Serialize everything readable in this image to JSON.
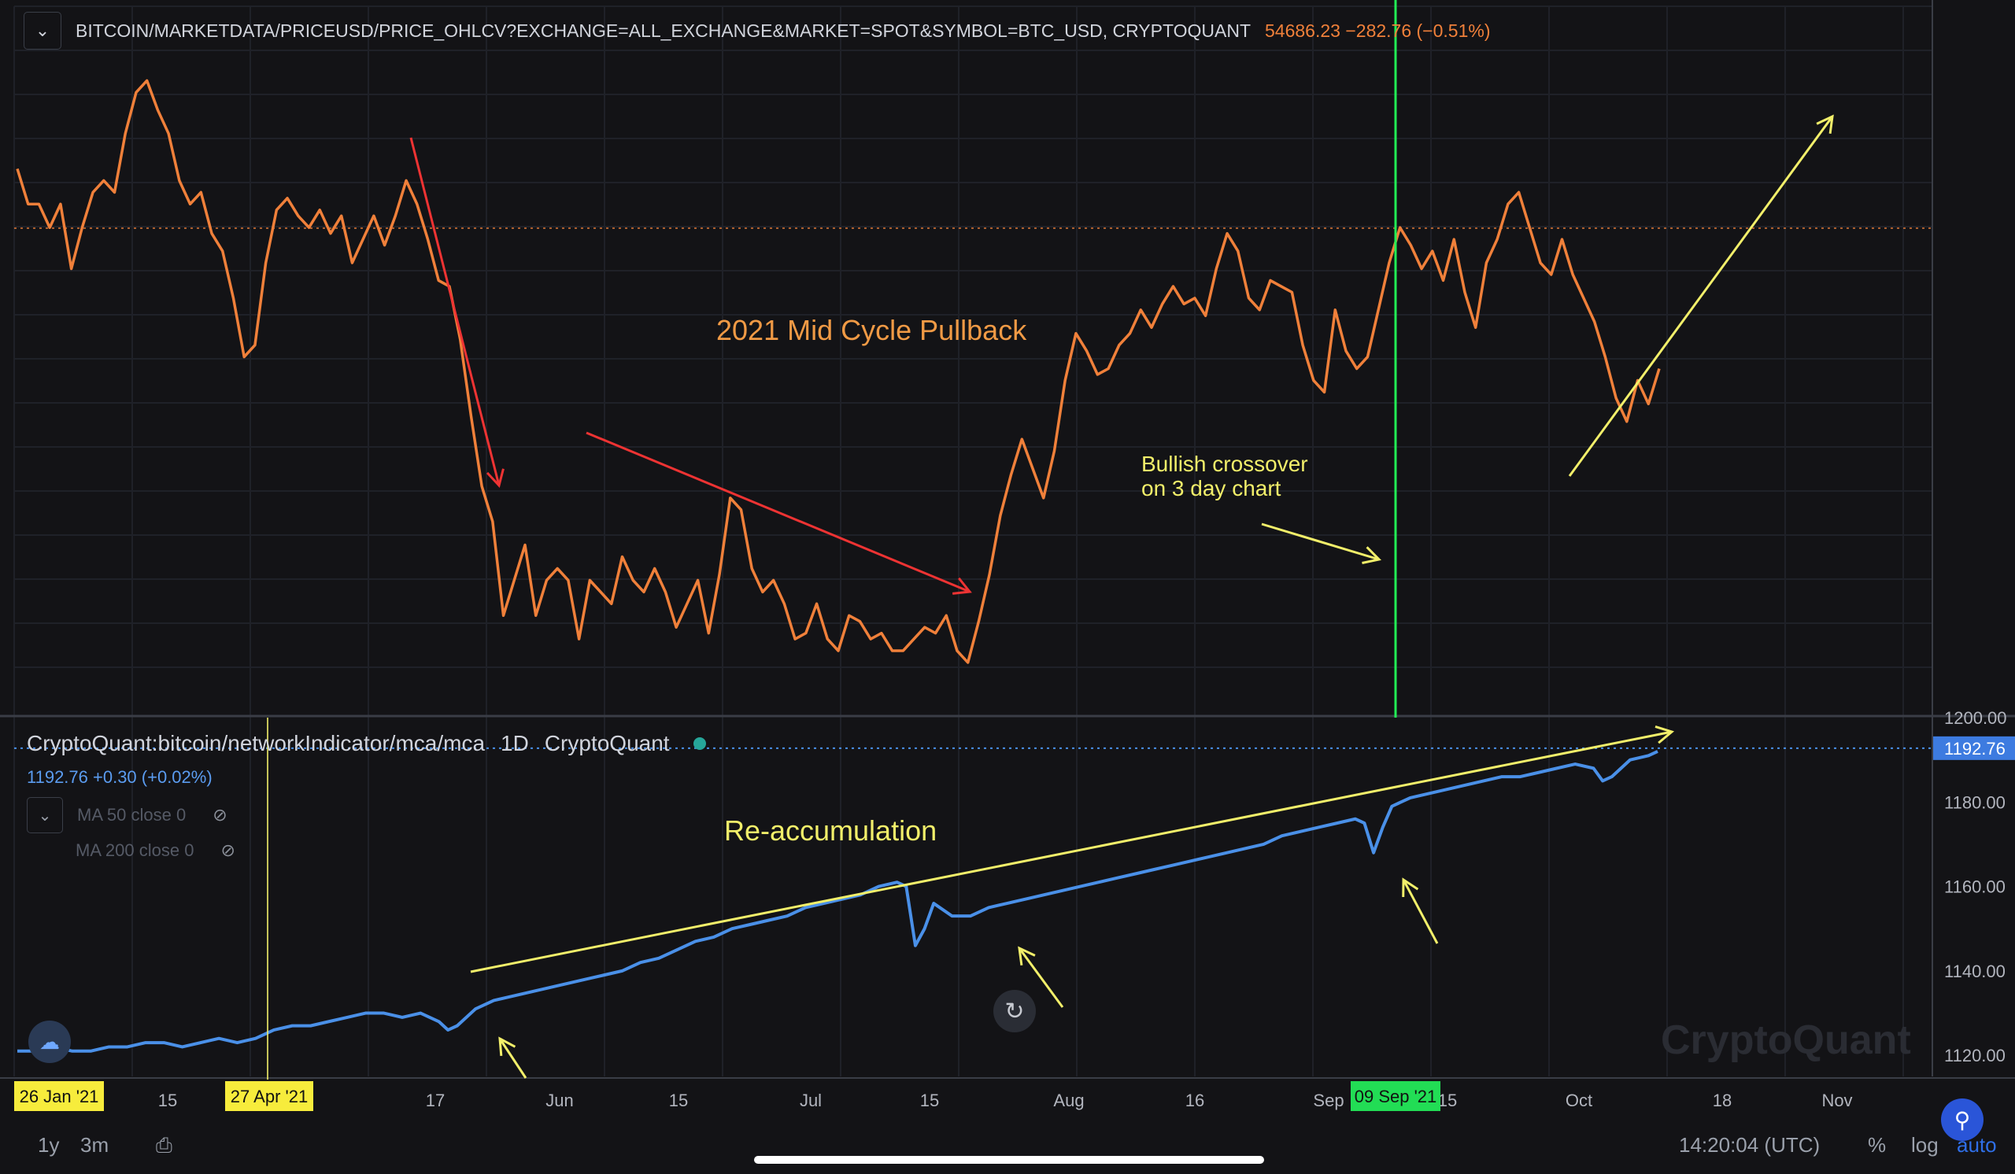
{
  "header": {
    "symbol": "BITCOIN/MARKETDATA/PRICEUSD/PRICE_OHLCV?EXCHANGE=ALL_EXCHANGE&MARKET=SPOT&SYMBOL=BTC_USD, CRYPTOQUANT",
    "price": "54686.23",
    "change": "−282.76 (−0.51%)",
    "collapse_icon": "chevron-down-icon"
  },
  "indicator": {
    "name": "CryptoQuant:bitcoin/networkIndicator/mca/mca",
    "interval": "1D",
    "source": "CryptoQuant",
    "value": "1192.76 +0.30 (+0.02%)",
    "ma50": "MA 50 close 0",
    "ma200": "MA 200 close 0"
  },
  "annotations": {
    "pullback": "2021 Mid Cycle Pullback",
    "crossover_line1": "Bullish crossover",
    "crossover_line2": "on 3 day chart",
    "reaccumulation": "Re-accumulation"
  },
  "date_badges": {
    "start": "26 Jan '21",
    "cursor": "27 Apr '21",
    "cross": "09 Sep '21"
  },
  "toolbar": {
    "range_1y": "1y",
    "range_3m": "3m",
    "time": "14:20:04 (UTC)",
    "pct": "%",
    "log": "log",
    "auto": "auto"
  },
  "watermark": "CryptoQuant",
  "colors": {
    "price": "#f0803a",
    "mca": "#4a90e8",
    "annotation": "#f2ef6a",
    "trend_down": "#ee3333",
    "crossover_line": "#22ee55",
    "background": "#131316"
  },
  "chart_data": [
    {
      "type": "line",
      "series": [
        {
          "name": "BITCOIN/MARKETDATA/PRICEUSD/PRICE_OHLCV",
          "values": [
            [
              0,
              0.16
            ],
            [
              3,
              0.22
            ],
            [
              6,
              0.22
            ],
            [
              9,
              0.26
            ],
            [
              12,
              0.22
            ],
            [
              15,
              0.33
            ],
            [
              18,
              0.26
            ],
            [
              21,
              0.2
            ],
            [
              24,
              0.18
            ],
            [
              27,
              0.2
            ],
            [
              30,
              0.1
            ],
            [
              33,
              0.03
            ],
            [
              36,
              0.01
            ],
            [
              39,
              0.06
            ],
            [
              42,
              0.1
            ],
            [
              45,
              0.18
            ],
            [
              48,
              0.22
            ],
            [
              51,
              0.2
            ],
            [
              54,
              0.27
            ],
            [
              57,
              0.3
            ],
            [
              60,
              0.38
            ],
            [
              63,
              0.48
            ],
            [
              66,
              0.46
            ],
            [
              69,
              0.32
            ],
            [
              72,
              0.23
            ],
            [
              75,
              0.21
            ],
            [
              78,
              0.24
            ],
            [
              81,
              0.26
            ],
            [
              84,
              0.23
            ],
            [
              87,
              0.27
            ],
            [
              90,
              0.24
            ],
            [
              93,
              0.32
            ],
            [
              96,
              0.28
            ],
            [
              99,
              0.24
            ],
            [
              102,
              0.29
            ],
            [
              105,
              0.24
            ],
            [
              108,
              0.18
            ],
            [
              111,
              0.22
            ],
            [
              114,
              0.28
            ],
            [
              117,
              0.35
            ],
            [
              120,
              0.36
            ],
            [
              123,
              0.45
            ],
            [
              126,
              0.58
            ],
            [
              129,
              0.7
            ],
            [
              132,
              0.76
            ],
            [
              135,
              0.92
            ],
            [
              138,
              0.86
            ],
            [
              141,
              0.8
            ],
            [
              144,
              0.92
            ],
            [
              147,
              0.86
            ],
            [
              150,
              0.84
            ],
            [
              153,
              0.86
            ],
            [
              156,
              0.96
            ],
            [
              159,
              0.86
            ],
            [
              162,
              0.88
            ],
            [
              165,
              0.9
            ],
            [
              168,
              0.82
            ],
            [
              171,
              0.86
            ],
            [
              174,
              0.88
            ],
            [
              177,
              0.84
            ],
            [
              180,
              0.88
            ],
            [
              183,
              0.94
            ],
            [
              186,
              0.9
            ],
            [
              189,
              0.86
            ],
            [
              192,
              0.95
            ],
            [
              195,
              0.85
            ],
            [
              198,
              0.72
            ],
            [
              201,
              0.74
            ],
            [
              204,
              0.84
            ],
            [
              207,
              0.88
            ],
            [
              210,
              0.86
            ],
            [
              213,
              0.9
            ],
            [
              216,
              0.96
            ],
            [
              219,
              0.95
            ],
            [
              222,
              0.9
            ],
            [
              225,
              0.96
            ],
            [
              228,
              0.98
            ],
            [
              231,
              0.92
            ],
            [
              234,
              0.93
            ],
            [
              237,
              0.96
            ],
            [
              240,
              0.95
            ],
            [
              243,
              0.98
            ],
            [
              246,
              0.98
            ],
            [
              249,
              0.96
            ],
            [
              252,
              0.94
            ],
            [
              255,
              0.95
            ],
            [
              258,
              0.92
            ],
            [
              261,
              0.98
            ],
            [
              264,
              1.0
            ],
            [
              267,
              0.93
            ],
            [
              270,
              0.85
            ],
            [
              273,
              0.75
            ],
            [
              276,
              0.68
            ],
            [
              279,
              0.62
            ],
            [
              282,
              0.67
            ],
            [
              285,
              0.72
            ],
            [
              288,
              0.64
            ],
            [
              291,
              0.52
            ],
            [
              294,
              0.44
            ],
            [
              297,
              0.47
            ],
            [
              300,
              0.51
            ],
            [
              303,
              0.5
            ],
            [
              306,
              0.46
            ],
            [
              309,
              0.44
            ],
            [
              312,
              0.4
            ],
            [
              315,
              0.43
            ],
            [
              318,
              0.39
            ],
            [
              321,
              0.36
            ],
            [
              324,
              0.39
            ],
            [
              327,
              0.38
            ],
            [
              330,
              0.41
            ],
            [
              333,
              0.33
            ],
            [
              336,
              0.27
            ],
            [
              339,
              0.3
            ],
            [
              342,
              0.38
            ],
            [
              345,
              0.4
            ],
            [
              348,
              0.35
            ],
            [
              351,
              0.36
            ],
            [
              354,
              0.37
            ],
            [
              357,
              0.46
            ],
            [
              360,
              0.52
            ],
            [
              363,
              0.54
            ],
            [
              366,
              0.4
            ],
            [
              369,
              0.47
            ],
            [
              372,
              0.5
            ],
            [
              375,
              0.48
            ],
            [
              378,
              0.4
            ],
            [
              381,
              0.32
            ],
            [
              384,
              0.26
            ],
            [
              387,
              0.29
            ],
            [
              390,
              0.33
            ],
            [
              393,
              0.3
            ],
            [
              396,
              0.35
            ],
            [
              399,
              0.28
            ],
            [
              402,
              0.37
            ],
            [
              405,
              0.43
            ],
            [
              408,
              0.32
            ],
            [
              411,
              0.28
            ],
            [
              414,
              0.22
            ],
            [
              417,
              0.2
            ],
            [
              420,
              0.26
            ],
            [
              423,
              0.32
            ],
            [
              426,
              0.34
            ],
            [
              429,
              0.28
            ],
            [
              432,
              0.34
            ],
            [
              435,
              0.38
            ],
            [
              438,
              0.42
            ],
            [
              441,
              0.48
            ],
            [
              444,
              0.55
            ],
            [
              447,
              0.59
            ],
            [
              450,
              0.52
            ],
            [
              453,
              0.56
            ],
            [
              456,
              0.5
            ]
          ]
        }
      ],
      "title": "",
      "xlabel": "",
      "ylabel": ""
    },
    {
      "type": "line",
      "series": [
        {
          "name": "CryptoQuant:bitcoin/networkIndicator/mca/mca",
          "values": [
            [
              0,
              1121
            ],
            [
              6,
              1121
            ],
            [
              12,
              1122
            ],
            [
              18,
              1121
            ],
            [
              24,
              1121
            ],
            [
              30,
              1122
            ],
            [
              36,
              1122
            ],
            [
              42,
              1123
            ],
            [
              48,
              1123
            ],
            [
              54,
              1122
            ],
            [
              60,
              1123
            ],
            [
              66,
              1124
            ],
            [
              72,
              1123
            ],
            [
              78,
              1124
            ],
            [
              84,
              1126
            ],
            [
              90,
              1127
            ],
            [
              96,
              1127
            ],
            [
              102,
              1128
            ],
            [
              108,
              1129
            ],
            [
              114,
              1130
            ],
            [
              120,
              1130
            ],
            [
              126,
              1129
            ],
            [
              132,
              1130
            ],
            [
              138,
              1128
            ],
            [
              141,
              1126
            ],
            [
              144,
              1127
            ],
            [
              150,
              1131
            ],
            [
              156,
              1133
            ],
            [
              162,
              1134
            ],
            [
              168,
              1135
            ],
            [
              174,
              1136
            ],
            [
              180,
              1137
            ],
            [
              186,
              1138
            ],
            [
              192,
              1139
            ],
            [
              198,
              1140
            ],
            [
              204,
              1142
            ],
            [
              210,
              1143
            ],
            [
              216,
              1145
            ],
            [
              222,
              1147
            ],
            [
              228,
              1148
            ],
            [
              234,
              1150
            ],
            [
              240,
              1151
            ],
            [
              246,
              1152
            ],
            [
              252,
              1153
            ],
            [
              258,
              1155
            ],
            [
              264,
              1156
            ],
            [
              270,
              1157
            ],
            [
              276,
              1158
            ],
            [
              282,
              1160
            ],
            [
              288,
              1161
            ],
            [
              291,
              1160
            ],
            [
              294,
              1146
            ],
            [
              297,
              1150
            ],
            [
              300,
              1156
            ],
            [
              306,
              1153
            ],
            [
              312,
              1153
            ],
            [
              318,
              1155
            ],
            [
              324,
              1156
            ],
            [
              330,
              1157
            ],
            [
              336,
              1158
            ],
            [
              342,
              1159
            ],
            [
              348,
              1160
            ],
            [
              354,
              1161
            ],
            [
              360,
              1162
            ],
            [
              366,
              1163
            ],
            [
              372,
              1164
            ],
            [
              378,
              1165
            ],
            [
              384,
              1166
            ],
            [
              390,
              1167
            ],
            [
              396,
              1168
            ],
            [
              402,
              1169
            ],
            [
              408,
              1170
            ],
            [
              414,
              1172
            ],
            [
              420,
              1173
            ],
            [
              426,
              1174
            ],
            [
              432,
              1175
            ],
            [
              438,
              1176
            ],
            [
              441,
              1175
            ],
            [
              444,
              1168
            ],
            [
              447,
              1174
            ],
            [
              450,
              1179
            ],
            [
              456,
              1181
            ],
            [
              462,
              1182
            ],
            [
              468,
              1183
            ],
            [
              474,
              1184
            ],
            [
              480,
              1185
            ],
            [
              486,
              1186
            ],
            [
              492,
              1186
            ],
            [
              498,
              1187
            ],
            [
              504,
              1188
            ],
            [
              510,
              1189
            ],
            [
              516,
              1188
            ],
            [
              519,
              1185
            ],
            [
              522,
              1186
            ],
            [
              528,
              1190
            ],
            [
              534,
              1191
            ],
            [
              537,
              1192
            ]
          ]
        }
      ],
      "ylim": [
        1115,
        1200
      ],
      "yticks": [
        "1200.00",
        "1180.00",
        "1160.00",
        "1140.00",
        "1120.00"
      ],
      "last_value": "1192.76",
      "xticks": [
        "15",
        "17",
        "Jun",
        "15",
        "Jul",
        "15",
        "Aug",
        "16",
        "Sep",
        "15",
        "Oct",
        "18",
        "Nov"
      ],
      "title": "",
      "xlabel": "",
      "ylabel": ""
    }
  ]
}
